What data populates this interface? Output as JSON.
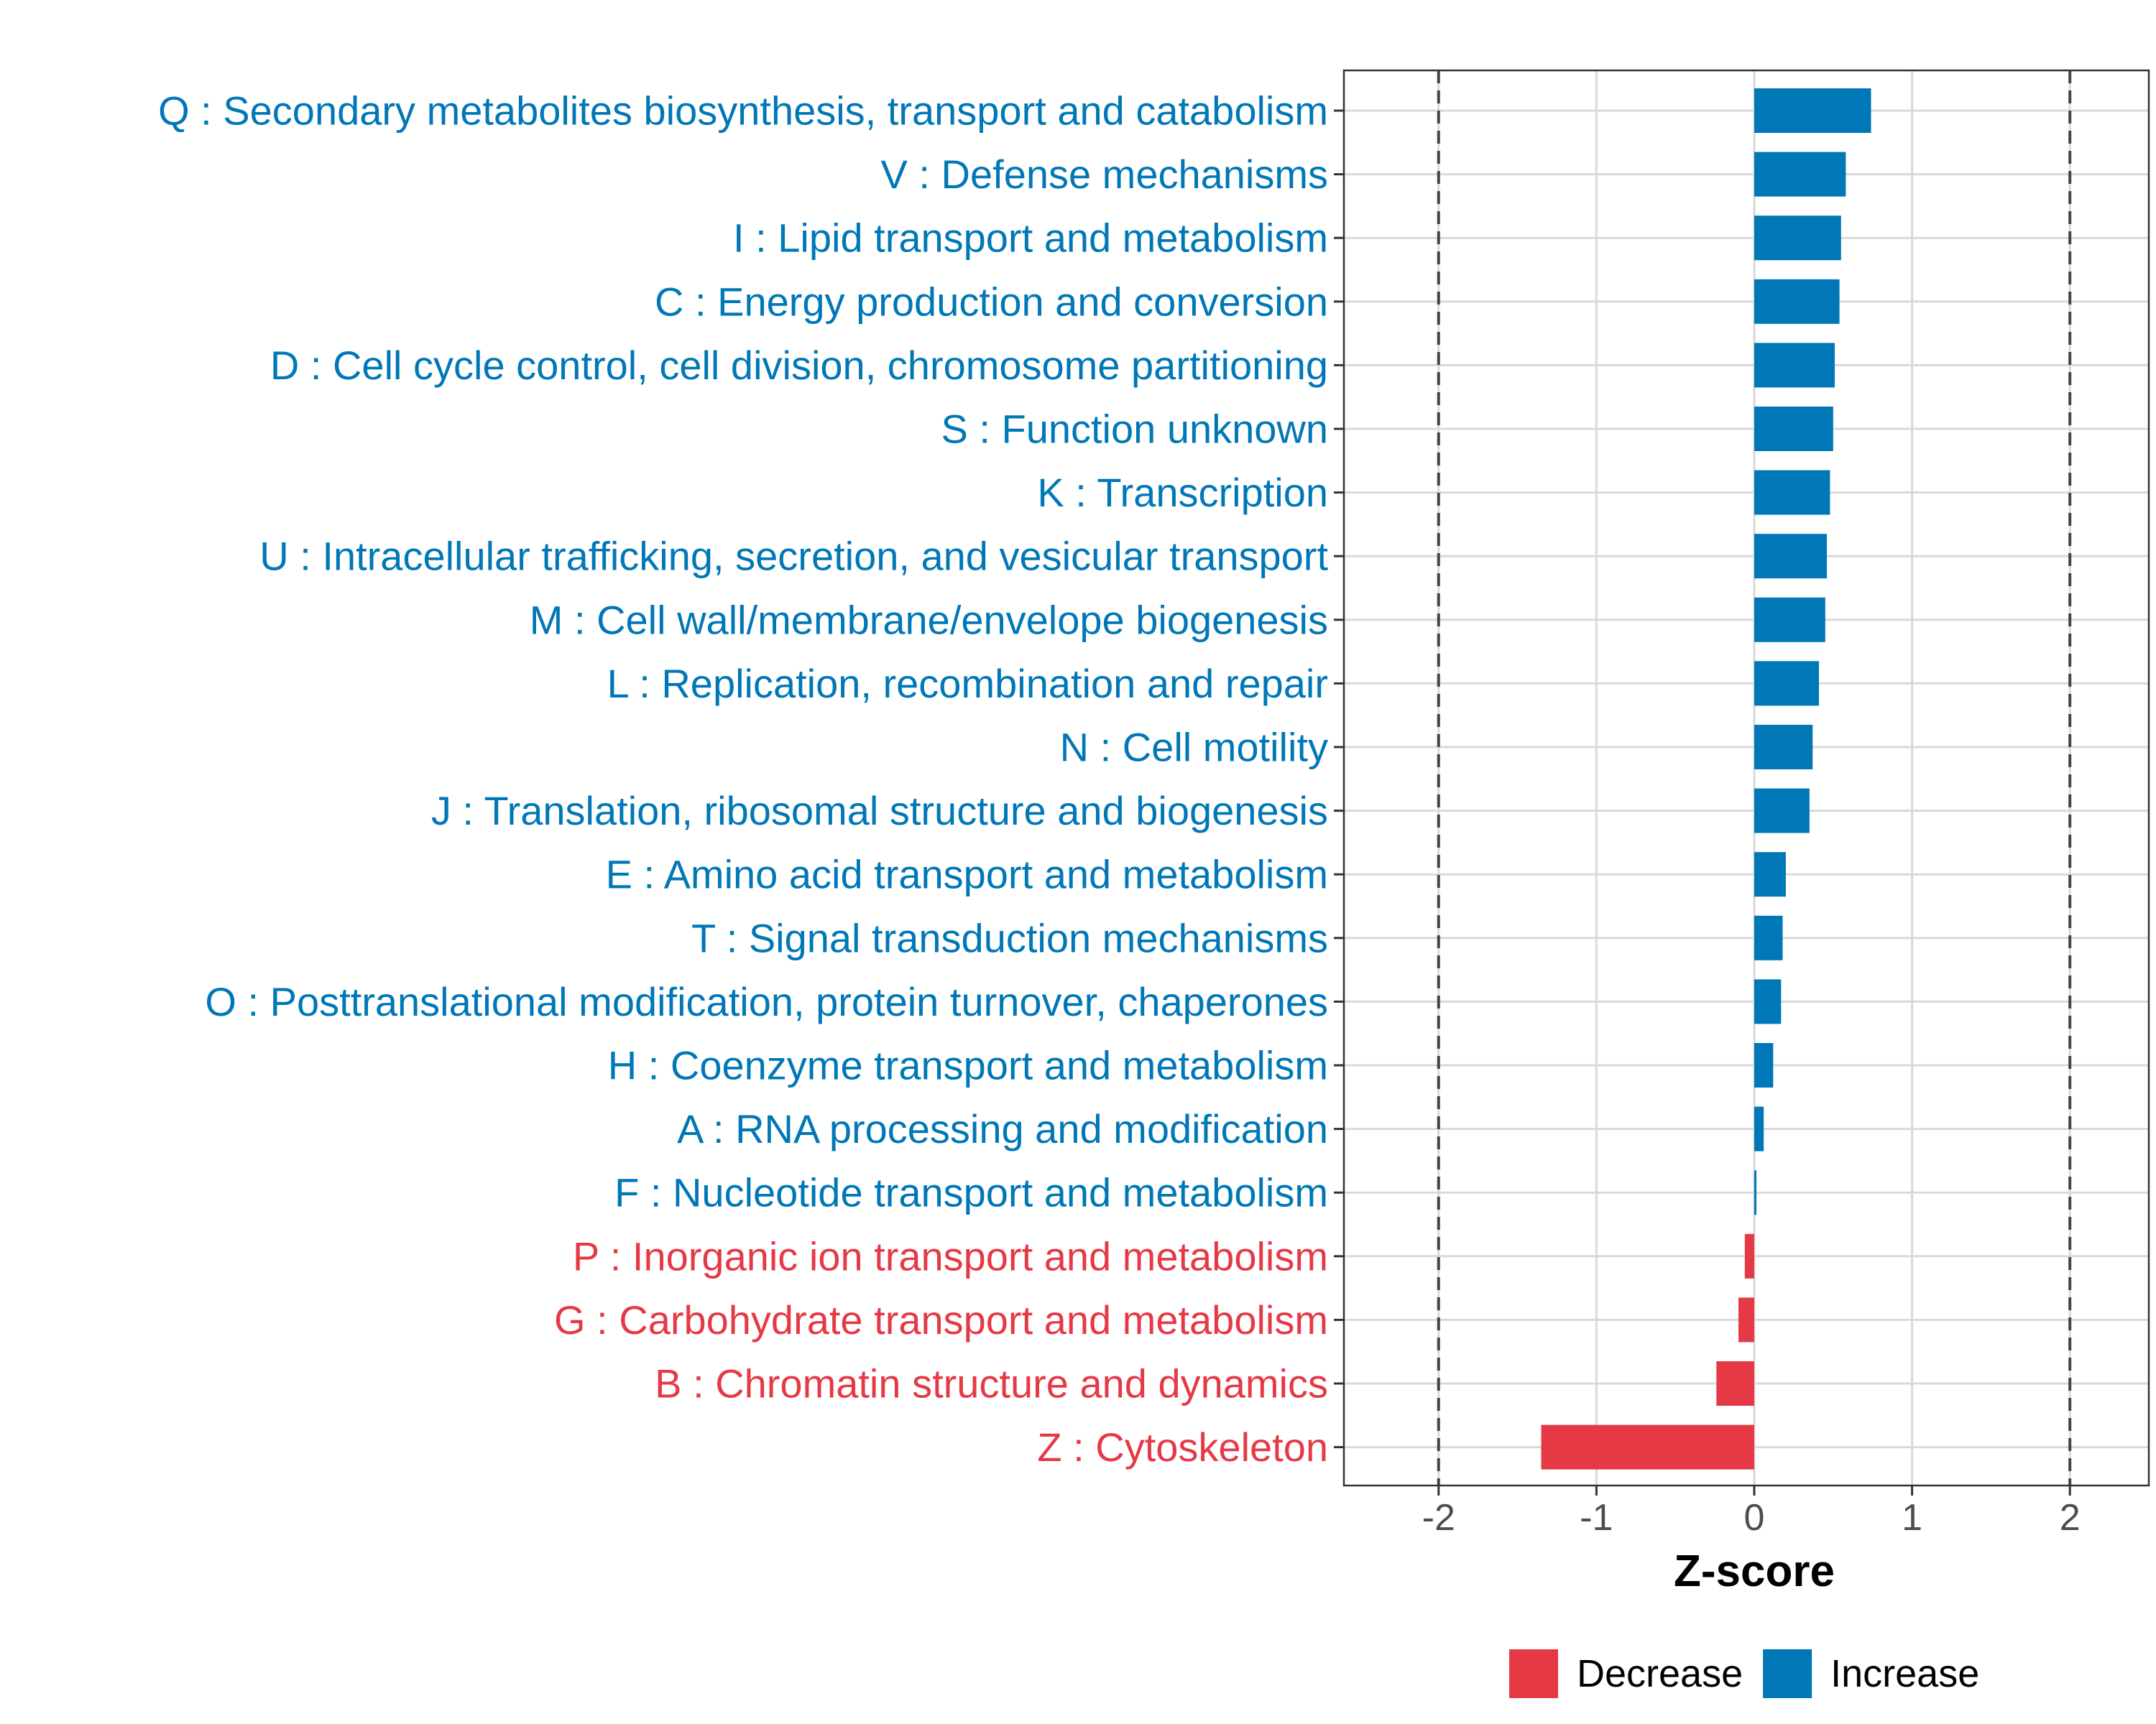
{
  "chart_data": {
    "type": "bar",
    "orientation": "horizontal",
    "title": "",
    "xlabel": "Z-score",
    "ylabel": "",
    "xlim": [
      -2.6,
      2.5
    ],
    "xticks": [
      -2,
      -1,
      0,
      1,
      2
    ],
    "xtick_labels": [
      "-2",
      "-1",
      "0",
      "1",
      "2"
    ],
    "reference_lines": [
      -2,
      2
    ],
    "grid": true,
    "legend_position": "bottom",
    "colors": {
      "Decrease": "#E63946",
      "Increase": "#0077B6"
    },
    "legend": [
      {
        "key": "Decrease",
        "label": "Decrease"
      },
      {
        "key": "Increase",
        "label": "Increase"
      }
    ],
    "categories": [
      "Q : Secondary metabolites biosynthesis, transport and catabolism",
      "V : Defense mechanisms",
      "I : Lipid transport and metabolism",
      "C : Energy production and conversion",
      "D : Cell cycle control, cell division, chromosome partitioning",
      "S : Function unknown",
      "K : Transcription",
      "U : Intracellular trafficking, secretion, and vesicular transport",
      "M : Cell wall/membrane/envelope biogenesis",
      "L : Replication, recombination and repair",
      "N : Cell motility",
      "J : Translation, ribosomal structure and biogenesis",
      "E : Amino acid transport and metabolism",
      "T : Signal transduction mechanisms",
      "O : Posttranslational modification, protein turnover, chaperones",
      "H : Coenzyme transport and metabolism",
      "A : RNA processing and modification",
      "F : Nucleotide transport and metabolism",
      "P : Inorganic ion transport and metabolism",
      "G : Carbohydrate transport and metabolism",
      "B : Chromatin structure and dynamics",
      "Z : Cytoskeleton"
    ],
    "values": [
      0.74,
      0.58,
      0.55,
      0.54,
      0.51,
      0.5,
      0.48,
      0.46,
      0.45,
      0.41,
      0.37,
      0.35,
      0.2,
      0.18,
      0.17,
      0.12,
      0.06,
      0.01,
      -0.06,
      -0.1,
      -0.24,
      -1.35
    ],
    "groups": [
      "Increase",
      "Increase",
      "Increase",
      "Increase",
      "Increase",
      "Increase",
      "Increase",
      "Increase",
      "Increase",
      "Increase",
      "Increase",
      "Increase",
      "Increase",
      "Increase",
      "Increase",
      "Increase",
      "Increase",
      "Increase",
      "Decrease",
      "Decrease",
      "Decrease",
      "Decrease"
    ]
  }
}
